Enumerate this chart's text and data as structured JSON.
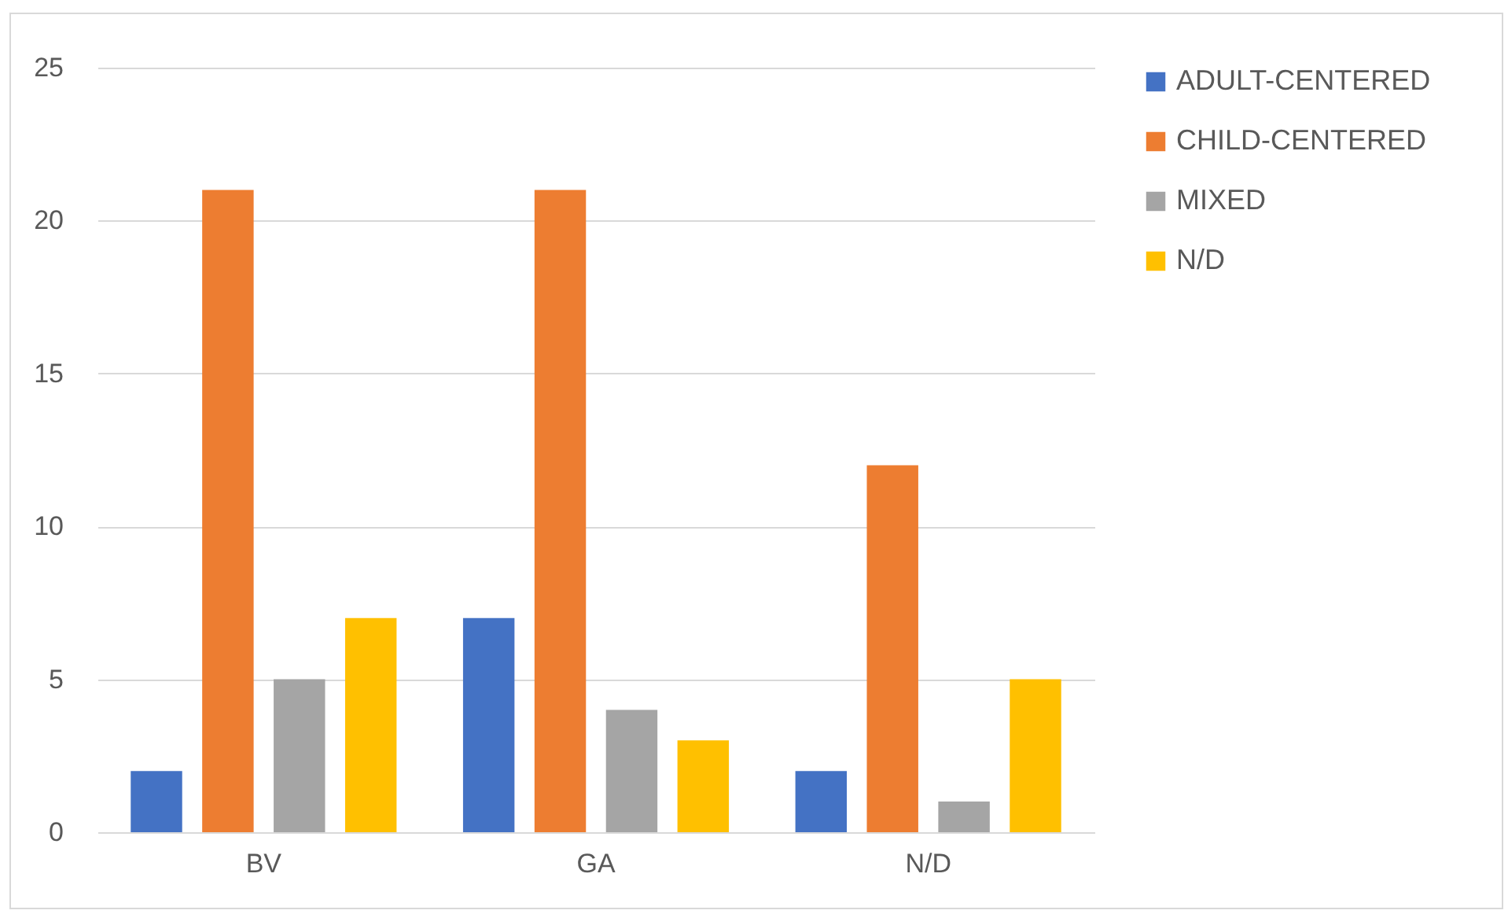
{
  "chart_data": {
    "type": "bar",
    "categories": [
      "BV",
      "GA",
      "N/D"
    ],
    "series": [
      {
        "name": "ADULT-CENTERED",
        "color": "#4472c4",
        "values": [
          2,
          7,
          2
        ]
      },
      {
        "name": "CHILD-CENTERED",
        "color": "#ed7d31",
        "values": [
          21,
          21,
          12
        ]
      },
      {
        "name": "MIXED",
        "color": "#a5a5a5",
        "values": [
          5,
          4,
          1
        ]
      },
      {
        "name": "N/D",
        "color": "#ffc000",
        "values": [
          7,
          3,
          5
        ]
      }
    ],
    "ylim": [
      0,
      25
    ],
    "yticks": [
      0,
      5,
      10,
      15,
      20,
      25
    ],
    "grid": "y",
    "legend": "right"
  }
}
